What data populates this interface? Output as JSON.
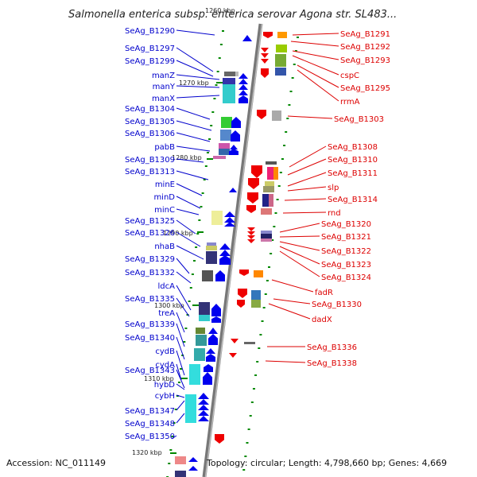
{
  "title": "Salmonella enterica subsp. enterica serovar Agona str. SL483...",
  "top_tick": "1260 kbp",
  "kbp_labels": [
    "1270 kbp",
    "1280 kbp",
    "1290 kbp",
    "1300 kbp",
    "1310 kbp",
    "1320 kbp"
  ],
  "left_labels": [
    "SeAg_B1290",
    "SeAg_B1297",
    "SeAg_B1299",
    "manZ",
    "manY",
    "manX",
    "SeAg_B1304",
    "SeAg_B1305",
    "SeAg_B1306",
    "pabB",
    "SeAg_B1309",
    "SeAg_B1313",
    "minE",
    "minD",
    "minC",
    "SeAg_B1325",
    "SeAg_B1326",
    "nhaB",
    "SeAg_B1329",
    "SeAg_B1332",
    "ldcA",
    "SeAg_B1335",
    "treA",
    "SeAg_B1339",
    "SeAg_B1340",
    "cydB",
    "cydA",
    "SeAg_B1343",
    "hybD",
    "cybH",
    "SeAg_B1347",
    "SeAg_B1348",
    "SeAg_B1350"
  ],
  "right_labels": [
    "SeAg_B1291",
    "SeAg_B1292",
    "SeAg_B1293",
    "cspC",
    "SeAg_B1295",
    "rrmA",
    "SeAg_B1303",
    "SeAg_B1308",
    "SeAg_B1310",
    "SeAg_B1311",
    "slp",
    "SeAg_B1314",
    "rnd",
    "SeAg_B1320",
    "SeAg_B1321",
    "SeAg_B1322",
    "SeAg_B1323",
    "SeAg_B1324",
    "fadR",
    "SeAg_B1330",
    "dadX",
    "SeAg_B1336",
    "SeAg_B1338"
  ],
  "footer": {
    "accession": "Accession: NC_011149",
    "summary": "Topology: circular; Length: 4,798,660 bp; Genes: 4,669"
  },
  "colors": {
    "forward_strand": "#0000ee",
    "reverse_strand": "#ee0000",
    "backbone": "#888888",
    "tick": "#008800"
  }
}
